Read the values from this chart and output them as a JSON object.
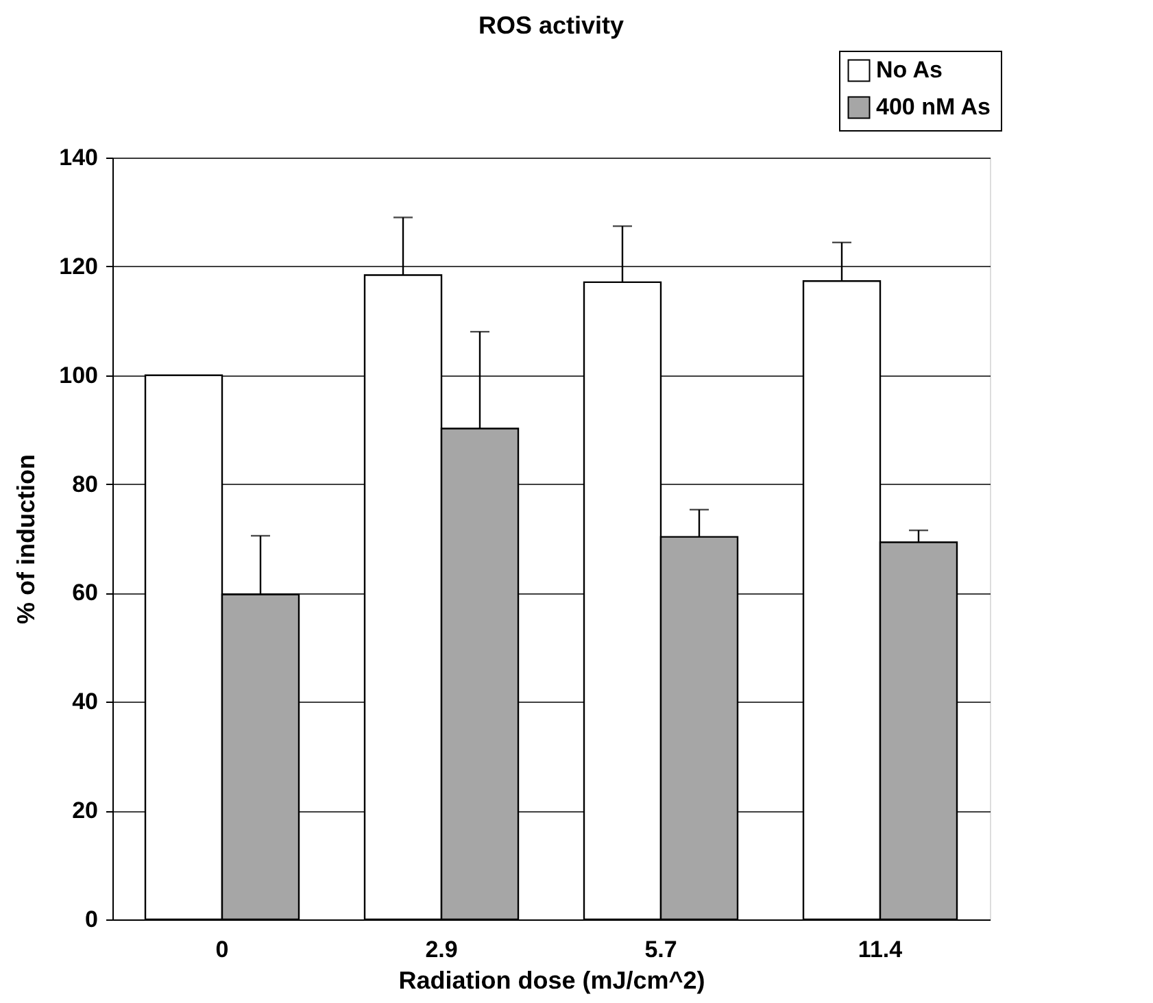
{
  "chart_data": {
    "type": "bar",
    "title": "ROS activity",
    "xlabel": "Radiation dose (mJ/cm^2)",
    "ylabel": "% of induction",
    "categories": [
      "0",
      "2.9",
      "5.7",
      "11.4"
    ],
    "series": [
      {
        "name": "No As",
        "color": "#ffffff",
        "values": [
          100,
          118.4,
          117.1,
          117.3
        ],
        "errors": [
          null,
          [
            118.4,
            129
          ],
          [
            117.1,
            127.4
          ],
          [
            117.3,
            124.4
          ]
        ]
      },
      {
        "name": "400 nM As",
        "color": "#a6a6a6",
        "values": [
          59.7,
          90.2,
          70.3,
          69.3
        ],
        "errors": [
          [
            59.7,
            70.5
          ],
          [
            90.2,
            108
          ],
          [
            70.3,
            75.3
          ],
          [
            69.3,
            71.5
          ]
        ]
      }
    ],
    "ylim": [
      0,
      140
    ],
    "yticks": [
      0,
      20,
      40,
      60,
      80,
      100,
      120,
      140
    ],
    "grid": "y",
    "legend": "top right"
  }
}
